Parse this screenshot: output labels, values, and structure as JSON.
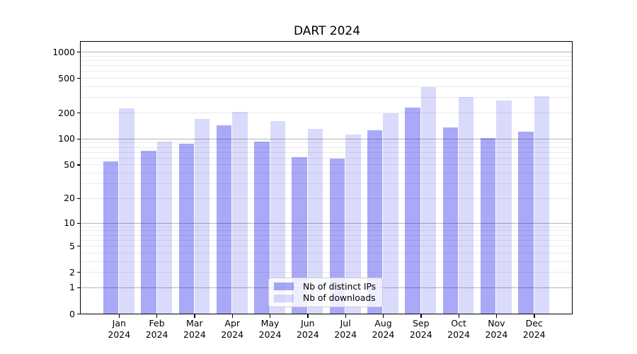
{
  "chart_data": {
    "type": "bar",
    "title": "DART 2024",
    "scale": "log10(1+y)",
    "grid": true,
    "legend_position": "bottom-center",
    "categories": [
      "Jan",
      "Feb",
      "Mar",
      "Apr",
      "May",
      "Jun",
      "Jul",
      "Aug",
      "Sep",
      "Oct",
      "Nov",
      "Dec"
    ],
    "category_year": "2024",
    "series": [
      {
        "name": "Nb of distinct IPs",
        "color": "rgba(10,10,235,0.35)",
        "values": [
          54,
          73,
          87,
          144,
          93,
          61,
          59,
          124,
          230,
          136,
          102,
          121
        ]
      },
      {
        "name": "Nb of downloads",
        "color": "rgba(10,10,235,0.15)",
        "values": [
          226,
          92,
          169,
          205,
          161,
          130,
          112,
          195,
          393,
          302,
          274,
          306
        ]
      }
    ],
    "y_ticks": [
      {
        "label": "1000",
        "v": 1000
      },
      {
        "label": "500",
        "v": 500
      },
      {
        "label": "200",
        "v": 200
      },
      {
        "label": "100",
        "v": 100
      },
      {
        "label": "50",
        "v": 50
      },
      {
        "label": "20",
        "v": 20
      },
      {
        "label": "10",
        "v": 10
      },
      {
        "label": "5",
        "v": 5
      },
      {
        "label": "2",
        "v": 2
      },
      {
        "label": "1",
        "v": 1
      },
      {
        "label": "0",
        "v": 0
      }
    ],
    "major_grid_values": [
      1,
      10,
      100,
      1000
    ],
    "ylim": [
      0,
      1294
    ],
    "colors": {
      "grid_major": "#b5b5b5",
      "grid_minor": "#eaeaea",
      "axis": "#000000"
    }
  }
}
